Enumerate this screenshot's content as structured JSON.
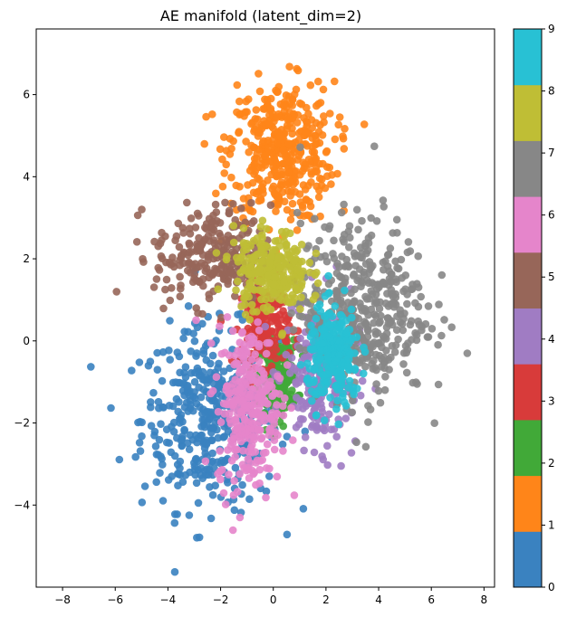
{
  "chart_data": {
    "type": "scatter",
    "title": "AE manifold (latent_dim=2)",
    "xlabel": "",
    "ylabel": "",
    "xlim": [
      -9,
      8.4
    ],
    "ylim": [
      -6.0,
      7.6
    ],
    "xticks": [
      -8,
      -6,
      -4,
      -2,
      0,
      2,
      4,
      6,
      8
    ],
    "yticks": [
      -4,
      -2,
      0,
      2,
      4,
      6
    ],
    "grid": false,
    "colorbar": {
      "range": [
        0,
        9
      ],
      "ticks": [
        0,
        1,
        2,
        3,
        4,
        5,
        6,
        7,
        8,
        9
      ],
      "colors": [
        "#3a82c0",
        "#ff8519",
        "#41a938",
        "#d83b3a",
        "#a07cc3",
        "#976659",
        "#e585cb",
        "#878787",
        "#bfbe35",
        "#28c1d4"
      ]
    },
    "clusters": [
      {
        "class": 0,
        "center": [
          -2.4,
          -1.9
        ],
        "spread": [
          1.3,
          1.1
        ],
        "color": "#3a82c0"
      },
      {
        "class": 1,
        "center": [
          0.3,
          4.6
        ],
        "spread": [
          1.0,
          0.85
        ],
        "color": "#ff8519"
      },
      {
        "class": 2,
        "center": [
          0.2,
          -0.9
        ],
        "spread": [
          0.35,
          0.45
        ],
        "color": "#41a938"
      },
      {
        "class": 3,
        "center": [
          -0.3,
          0.4
        ],
        "spread": [
          0.45,
          0.5
        ],
        "color": "#d83b3a"
      },
      {
        "class": 4,
        "center": [
          1.8,
          -0.8
        ],
        "spread": [
          0.7,
          0.9
        ],
        "color": "#a07cc3"
      },
      {
        "class": 5,
        "center": [
          -2.3,
          2.1
        ],
        "spread": [
          1.1,
          0.6
        ],
        "color": "#976659"
      },
      {
        "class": 6,
        "center": [
          -0.9,
          -1.6
        ],
        "spread": [
          0.6,
          1.0
        ],
        "color": "#e585cb"
      },
      {
        "class": 7,
        "center": [
          3.4,
          0.8
        ],
        "spread": [
          1.2,
          1.1
        ],
        "color": "#878787"
      },
      {
        "class": 8,
        "center": [
          -0.1,
          1.7
        ],
        "spread": [
          0.7,
          0.5
        ],
        "color": "#bfbe35"
      },
      {
        "class": 9,
        "center": [
          2.3,
          -0.4
        ],
        "spread": [
          0.5,
          0.6
        ],
        "color": "#28c1d4"
      }
    ]
  }
}
